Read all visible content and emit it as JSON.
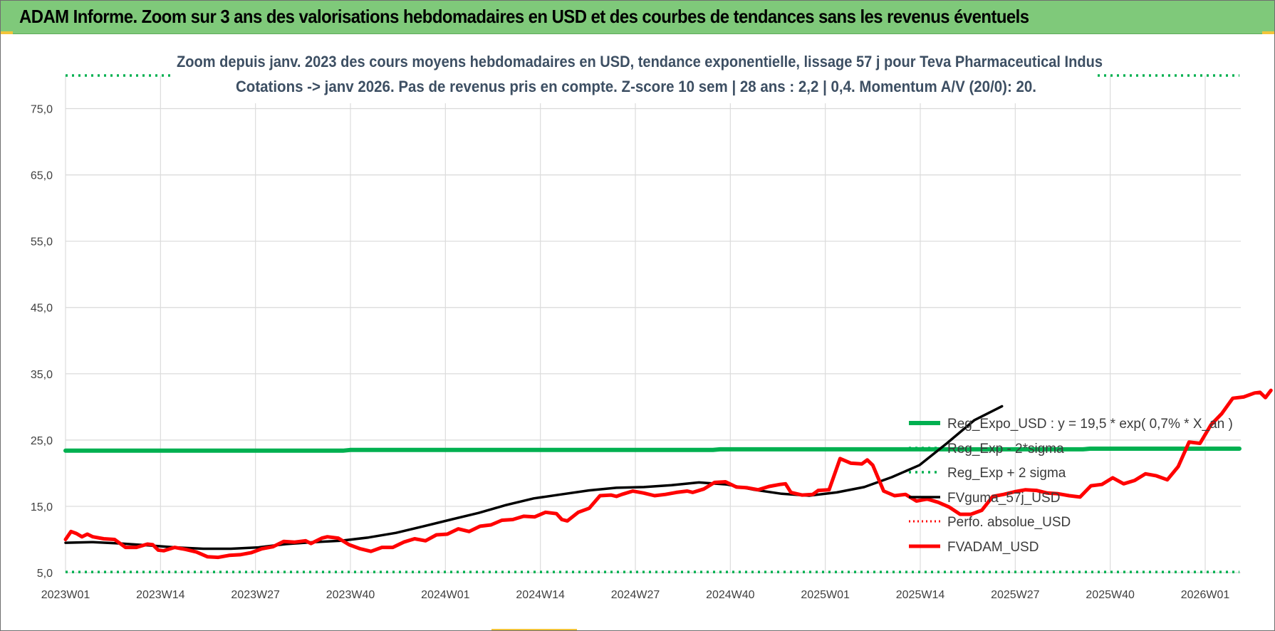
{
  "banner": {
    "title": "ADAM Informe. Zoom sur 3 ans des valorisations hebdomadaires en USD et des courbes de tendances sans les revenus éventuels"
  },
  "colors": {
    "banner": "#7fc97a",
    "regression": "#00b050",
    "sigma": "#00b050",
    "fvguma": "#000000",
    "perfo": "#ff0000",
    "fvadam": "#ff0000"
  },
  "chart_data": {
    "type": "line",
    "title": "Zoom depuis janv. 2023 des cours moyens hebdomadaires en USD, tendance exponentielle, lissage 57 j pour Teva Pharmaceutical Indus",
    "subtitle": "Cotations -> janv 2026. Pas de revenus pris en compte. Z-score 10 sem | 28 ans : 2,2 | 0,4. Momentum A/V (20/0): 20.",
    "xlabel": "",
    "ylabel": "",
    "ylim": [
      5,
      80
    ],
    "y_ticks": [
      "5,0",
      "15,0",
      "25,0",
      "35,0",
      "45,0",
      "55,0",
      "65,0",
      "75,0"
    ],
    "x_ticks": [
      "2023W01",
      "2023W14",
      "2023W27",
      "2023W40",
      "2024W01",
      "2024W14",
      "2024W27",
      "2024W40",
      "2025W01",
      "2025W14",
      "2025W27",
      "2025W40",
      "2026W01"
    ],
    "grid": true,
    "legend_position": "right",
    "series": [
      {
        "name": "Reg_Expo_USD : y = 19,5 * exp( 0,7% * X_an )",
        "style": "solid-thick",
        "values": [
          [
            0,
            23.4
          ],
          [
            39,
            23.4
          ],
          [
            40,
            23.5
          ],
          [
            91,
            23.5
          ],
          [
            92,
            23.6
          ],
          [
            143,
            23.6
          ],
          [
            144,
            23.7
          ],
          [
            165,
            23.7
          ]
        ]
      },
      {
        "name": "Reg_Exp - 2*sigma",
        "style": "dotted",
        "values": [
          [
            0,
            5.1
          ],
          [
            165,
            5.1
          ]
        ]
      },
      {
        "name": "Reg_Exp + 2 sigma",
        "style": "dotted",
        "values": [
          [
            0,
            80.0
          ],
          [
            165,
            80.0
          ]
        ]
      },
      {
        "name": "FVguma_57j_USD",
        "style": "solid",
        "values": [
          [
            0,
            9.5
          ],
          [
            5,
            9.6
          ],
          [
            10,
            9.4
          ],
          [
            15,
            9.1
          ],
          [
            20,
            8.8
          ],
          [
            25,
            8.6
          ],
          [
            30,
            8.6
          ],
          [
            35,
            8.8
          ],
          [
            40,
            9.3
          ],
          [
            45,
            9.6
          ],
          [
            50,
            9.8
          ],
          [
            55,
            10.3
          ],
          [
            60,
            11.0
          ],
          [
            65,
            12.0
          ],
          [
            70,
            13.0
          ],
          [
            75,
            14.0
          ],
          [
            80,
            15.2
          ],
          [
            85,
            16.2
          ],
          [
            90,
            16.8
          ],
          [
            95,
            17.4
          ],
          [
            100,
            17.8
          ],
          [
            105,
            17.9
          ],
          [
            110,
            18.2
          ],
          [
            115,
            18.6
          ],
          [
            120,
            18.3
          ],
          [
            125,
            17.5
          ],
          [
            130,
            16.9
          ],
          [
            135,
            16.6
          ],
          [
            140,
            17.1
          ],
          [
            145,
            17.9
          ],
          [
            150,
            19.4
          ],
          [
            155,
            21.2
          ],
          [
            160,
            24.5
          ],
          [
            165,
            28.0
          ],
          [
            170,
            30.1
          ]
        ]
      },
      {
        "name": "Perfo. absolue_USD",
        "style": "dotted",
        "values": []
      },
      {
        "name": "FVADAM_USD",
        "style": "solid-thick",
        "values": [
          [
            0,
            10.0
          ],
          [
            1,
            11.2
          ],
          [
            2,
            10.9
          ],
          [
            3,
            10.4
          ],
          [
            4,
            10.8
          ],
          [
            5,
            10.4
          ],
          [
            7,
            10.1
          ],
          [
            9,
            10.0
          ],
          [
            11,
            8.8
          ],
          [
            13,
            8.8
          ],
          [
            15,
            9.3
          ],
          [
            16,
            9.2
          ],
          [
            17,
            8.4
          ],
          [
            18,
            8.3
          ],
          [
            20,
            8.8
          ],
          [
            22,
            8.5
          ],
          [
            24,
            8.1
          ],
          [
            26,
            7.4
          ],
          [
            28,
            7.3
          ],
          [
            30,
            7.6
          ],
          [
            32,
            7.7
          ],
          [
            34,
            8.0
          ],
          [
            36,
            8.6
          ],
          [
            38,
            8.9
          ],
          [
            40,
            9.7
          ],
          [
            42,
            9.6
          ],
          [
            44,
            9.8
          ],
          [
            45,
            9.4
          ],
          [
            47,
            10.2
          ],
          [
            48,
            10.4
          ],
          [
            50,
            10.2
          ],
          [
            52,
            9.2
          ],
          [
            54,
            8.6
          ],
          [
            56,
            8.2
          ],
          [
            58,
            8.8
          ],
          [
            60,
            8.8
          ],
          [
            62,
            9.6
          ],
          [
            64,
            10.1
          ],
          [
            66,
            9.8
          ],
          [
            68,
            10.7
          ],
          [
            70,
            10.8
          ],
          [
            72,
            11.6
          ],
          [
            74,
            11.2
          ],
          [
            76,
            12.0
          ],
          [
            78,
            12.2
          ],
          [
            80,
            12.9
          ],
          [
            82,
            13.0
          ],
          [
            84,
            13.5
          ],
          [
            86,
            13.4
          ],
          [
            88,
            14.1
          ],
          [
            90,
            13.9
          ],
          [
            91,
            13.0
          ],
          [
            92,
            12.8
          ],
          [
            94,
            14.1
          ],
          [
            96,
            14.7
          ],
          [
            98,
            16.6
          ],
          [
            100,
            16.7
          ],
          [
            101,
            16.5
          ],
          [
            102,
            16.8
          ],
          [
            104,
            17.3
          ],
          [
            106,
            17.0
          ],
          [
            108,
            16.6
          ],
          [
            110,
            16.8
          ],
          [
            112,
            17.1
          ],
          [
            114,
            17.3
          ],
          [
            115,
            17.1
          ],
          [
            117,
            17.6
          ],
          [
            119,
            18.6
          ],
          [
            121,
            18.7
          ],
          [
            123,
            17.9
          ],
          [
            125,
            17.8
          ],
          [
            127,
            17.5
          ],
          [
            129,
            18.0
          ],
          [
            131,
            18.3
          ],
          [
            132,
            18.4
          ],
          [
            133,
            17.1
          ],
          [
            135,
            16.7
          ],
          [
            137,
            16.8
          ],
          [
            138,
            17.4
          ],
          [
            140,
            17.5
          ],
          [
            142,
            22.2
          ],
          [
            144,
            21.5
          ],
          [
            146,
            21.4
          ],
          [
            147,
            22.0
          ],
          [
            148,
            21.2
          ],
          [
            150,
            17.3
          ],
          [
            152,
            16.6
          ],
          [
            154,
            16.8
          ],
          [
            156,
            15.8
          ],
          [
            158,
            16.1
          ],
          [
            160,
            15.6
          ],
          [
            162,
            14.9
          ],
          [
            164,
            13.8
          ],
          [
            166,
            13.8
          ],
          [
            168,
            14.4
          ],
          [
            170,
            16.5
          ],
          [
            172,
            16.8
          ],
          [
            174,
            17.2
          ],
          [
            176,
            17.5
          ],
          [
            178,
            17.4
          ],
          [
            180,
            17.0
          ],
          [
            182,
            16.9
          ],
          [
            184,
            16.6
          ],
          [
            186,
            16.4
          ],
          [
            188,
            18.1
          ],
          [
            190,
            18.3
          ],
          [
            192,
            19.3
          ],
          [
            194,
            18.4
          ],
          [
            196,
            18.9
          ],
          [
            198,
            19.9
          ],
          [
            200,
            19.6
          ],
          [
            202,
            19.0
          ],
          [
            204,
            21.0
          ],
          [
            206,
            24.7
          ],
          [
            208,
            24.5
          ],
          [
            210,
            27.3
          ],
          [
            212,
            29.0
          ],
          [
            214,
            31.3
          ],
          [
            216,
            31.5
          ],
          [
            218,
            32.1
          ],
          [
            219,
            32.2
          ],
          [
            220,
            31.4
          ],
          [
            221,
            32.5
          ]
        ]
      }
    ]
  }
}
